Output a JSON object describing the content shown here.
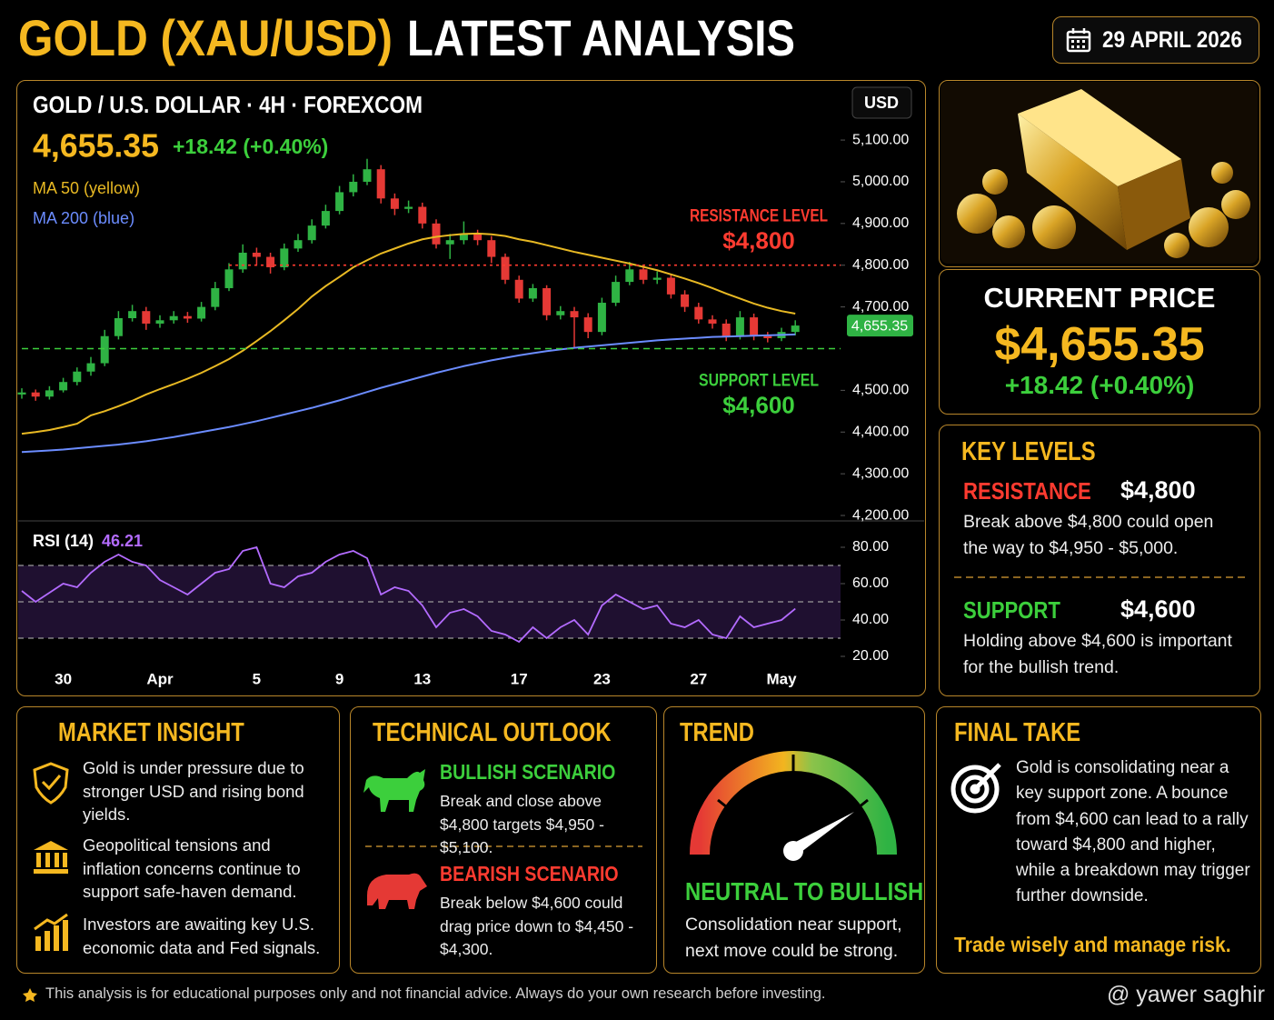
{
  "header": {
    "title_gold": "GOLD (XAU/USD)",
    "title_rest": "LATEST ANALYSIS",
    "date": "29 APRIL 2026"
  },
  "chart_data": [
    {
      "type": "candlestick",
      "title": "GOLD / U.S. DOLLAR · 4H · FOREXCOM",
      "last": {
        "value": 4655.35,
        "label": "4,655.35"
      },
      "change": "+18.42 (+0.40%)",
      "currency": "USD",
      "categories": [
        null,
        null,
        null,
        "30",
        null,
        null,
        null,
        null,
        null,
        null,
        "Apr",
        null,
        null,
        null,
        null,
        null,
        null,
        "5",
        null,
        null,
        null,
        null,
        null,
        "9",
        null,
        null,
        null,
        null,
        null,
        "13",
        null,
        null,
        null,
        null,
        null,
        null,
        "17",
        null,
        null,
        null,
        null,
        null,
        "23",
        null,
        null,
        null,
        null,
        null,
        null,
        "27",
        null,
        null,
        null,
        null,
        null,
        "May",
        null
      ],
      "open": [
        4490,
        4495,
        4485,
        4500,
        4520,
        4545,
        4565,
        4630,
        4673,
        4690,
        4660,
        4668,
        4678,
        4672,
        4700,
        4745,
        4790,
        4830,
        4820,
        4795,
        4840,
        4860,
        4895,
        4930,
        4975,
        5000,
        5030,
        4960,
        4935,
        4940,
        4900,
        4850,
        4860,
        4875,
        4860,
        4820,
        4765,
        4720,
        4745,
        4680,
        4690,
        4675,
        4640,
        4710,
        4760,
        4790,
        4765,
        4770,
        4730,
        4700,
        4670,
        4660,
        4630,
        4675,
        4630,
        4625,
        4640
      ],
      "high": [
        4505,
        4502,
        4510,
        4530,
        4555,
        4580,
        4645,
        4690,
        4705,
        4700,
        4680,
        4690,
        4688,
        4712,
        4760,
        4805,
        4850,
        4842,
        4830,
        4852,
        4875,
        4910,
        4945,
        4990,
        5018,
        5055,
        5040,
        4972,
        4955,
        4950,
        4910,
        4875,
        4905,
        4885,
        4870,
        4828,
        4775,
        4755,
        4752,
        4702,
        4700,
        4685,
        4722,
        4775,
        4808,
        4800,
        4785,
        4778,
        4740,
        4710,
        4680,
        4670,
        4690,
        4684,
        4640,
        4650,
        4668
      ],
      "low": [
        4480,
        4475,
        4478,
        4495,
        4512,
        4535,
        4558,
        4622,
        4665,
        4645,
        4650,
        4660,
        4662,
        4665,
        4692,
        4738,
        4782,
        4800,
        4780,
        4788,
        4832,
        4852,
        4888,
        4922,
        4965,
        4992,
        4948,
        4920,
        4925,
        4888,
        4840,
        4815,
        4850,
        4848,
        4805,
        4755,
        4710,
        4712,
        4668,
        4670,
        4600,
        4625,
        4632,
        4702,
        4752,
        4755,
        4755,
        4720,
        4688,
        4660,
        4648,
        4618,
        4622,
        4620,
        4615,
        4618,
        4632
      ],
      "close": [
        4495,
        4485,
        4500,
        4520,
        4545,
        4565,
        4630,
        4673,
        4690,
        4660,
        4668,
        4678,
        4672,
        4700,
        4745,
        4790,
        4830,
        4820,
        4795,
        4840,
        4860,
        4895,
        4930,
        4975,
        5000,
        5030,
        4960,
        4935,
        4940,
        4900,
        4850,
        4860,
        4875,
        4860,
        4820,
        4765,
        4720,
        4745,
        4680,
        4690,
        4675,
        4640,
        4710,
        4760,
        4790,
        4765,
        4770,
        4730,
        4700,
        4670,
        4660,
        4630,
        4675,
        4630,
        4625,
        4640,
        4655.35
      ],
      "colors": {
        "up": "#2fb344",
        "down": "#e53935"
      },
      "series": [
        {
          "name": "MA 50 (yellow)",
          "color": "#e8b923",
          "values": [
            4396,
            4400,
            4405,
            4412,
            4420,
            4440,
            4450,
            4462,
            4475,
            4490,
            4503,
            4515,
            4528,
            4542,
            4558,
            4575,
            4595,
            4618,
            4642,
            4668,
            4695,
            4725,
            4750,
            4772,
            4795,
            4812,
            4828,
            4840,
            4852,
            4862,
            4868,
            4872,
            4875,
            4876,
            4874,
            4870,
            4862,
            4856,
            4848,
            4840,
            4832,
            4825,
            4818,
            4811,
            4804,
            4796,
            4788,
            4778,
            4768,
            4757,
            4745,
            4732,
            4720,
            4708,
            4698,
            4690,
            4684
          ]
        },
        {
          "name": "MA 200 (blue)",
          "color": "#6b8cff",
          "values": [
            4352,
            4354,
            4356,
            4358,
            4361,
            4364,
            4367,
            4370,
            4374,
            4378,
            4383,
            4388,
            4394,
            4400,
            4406,
            4412,
            4419,
            4426,
            4434,
            4442,
            4450,
            4458,
            4467,
            4476,
            4486,
            4496,
            4506,
            4515,
            4524,
            4533,
            4542,
            4550,
            4558,
            4565,
            4572,
            4578,
            4584,
            4589,
            4594,
            4598,
            4602,
            4605,
            4608,
            4611,
            4614,
            4617,
            4620,
            4622,
            4624,
            4626,
            4628,
            4629,
            4630,
            4631,
            4632,
            4633,
            4634
          ]
        }
      ],
      "annotations": [
        {
          "text": "RESISTANCE LEVEL",
          "value": 4800,
          "value_label": "$4,800",
          "color": "#ff3b30"
        },
        {
          "text": "SUPPORT LEVEL",
          "value": 4600,
          "value_label": "$4,600",
          "color": "#3ccf3c"
        }
      ],
      "ylim": [
        4187,
        5244
      ],
      "yticks": [
        {
          "value": 5100,
          "label": "5,100.00"
        },
        {
          "value": 5000,
          "label": "5,000.00"
        },
        {
          "value": 4900,
          "label": "4,900.00"
        },
        {
          "value": 4800,
          "label": "4,800.00"
        },
        {
          "value": 4700,
          "label": "4,700.00"
        },
        {
          "value": 4500,
          "label": "4,500.00"
        },
        {
          "value": 4400,
          "label": "4,400.00"
        },
        {
          "value": 4300,
          "label": "4,300.00"
        },
        {
          "value": 4200,
          "label": "4,200.00"
        }
      ]
    },
    {
      "type": "line",
      "title": "RSI (14)",
      "series": [
        {
          "color": "#b36bff",
          "values": [
            56,
            50,
            55,
            60,
            58,
            66,
            72,
            76,
            72,
            70,
            62,
            58,
            54,
            60,
            66,
            68,
            78,
            80,
            60,
            58,
            64,
            66,
            72,
            76,
            78,
            74,
            54,
            58,
            56,
            48,
            36,
            44,
            46,
            42,
            34,
            32,
            28,
            36,
            30,
            36,
            40,
            32,
            48,
            54,
            50,
            46,
            48,
            38,
            36,
            40,
            32,
            30,
            42,
            36,
            38,
            40,
            46.21
          ]
        }
      ],
      "levels": [
        30,
        50,
        70
      ],
      "ylim": [
        13.5,
        92
      ],
      "yticks": [
        {
          "value": 80,
          "label": "80.00"
        },
        {
          "value": 60,
          "label": "60.00"
        },
        {
          "value": 40,
          "label": "40.00"
        },
        {
          "value": 20,
          "label": "20.00"
        }
      ]
    }
  ],
  "current_price": {
    "heading": "CURRENT PRICE",
    "price": "$4,655.35",
    "change": "+18.42 (+0.40%)"
  },
  "key_levels": {
    "heading": "KEY LEVELS",
    "resistance": {
      "label": "RESISTANCE",
      "value": "$4,800",
      "text": "Break above $4,800 could open the way to $4,950 - $5,000."
    },
    "support": {
      "label": "SUPPORT",
      "value": "$4,600",
      "text": "Holding above $4,600 is important for the bullish trend."
    }
  },
  "market_insight": {
    "heading": "MARKET INSIGHT",
    "items": [
      "Gold is under pressure due to stronger USD and rising bond yields.",
      "Geopolitical tensions and inflation concerns continue to support safe-haven demand.",
      "Investors are awaiting key U.S. economic data and Fed signals."
    ]
  },
  "technical_outlook": {
    "heading": "TECHNICAL OUTLOOK",
    "bullish": {
      "title": "BULLISH SCENARIO",
      "text": "Break and close above $4,800 targets $4,950 - $5,100."
    },
    "bearish": {
      "title": "BEARISH SCENARIO",
      "text": "Break below $4,600 could drag price down to $4,450 - $4,300."
    }
  },
  "trend": {
    "heading": "TREND",
    "verdict": "NEUTRAL TO BULLISH",
    "text": "Consolidation near support, next move could be strong."
  },
  "final_take": {
    "heading": "FINAL TAKE",
    "text": "Gold is consolidating near a key support zone. A bounce from $4,600 can lead to a rally toward $4,800 and higher, while a breakdown may trigger further downside.",
    "closing": "Trade wisely and manage risk."
  },
  "footer": {
    "disclaimer": "This analysis is for educational purposes only and not financial advice. Always do your own research before investing.",
    "author": "@ yawer saghir"
  }
}
